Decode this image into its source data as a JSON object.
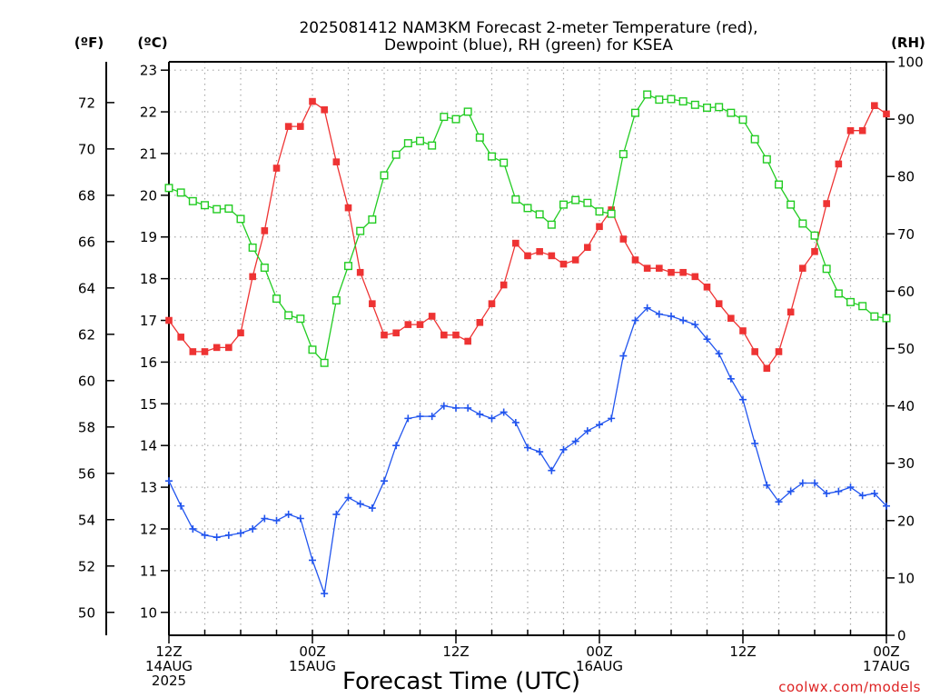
{
  "title_line1": "2025081412 NAM3KM Forecast 2-meter Temperature (red),",
  "title_line2": "Dewpoint (blue), RH (green) for KSEA",
  "credit": "coolwx.com/models",
  "chart_data": {
    "type": "line",
    "title": "2025081412 NAM3KM Forecast 2-meter Temperature (red), Dewpoint (blue), RH (green) for KSEA",
    "xlabel": "Forecast Time (UTC)",
    "ylabel_left_outer": "(ºF)",
    "ylabel_left": "(ºC)",
    "ylabel_right": "(RH)",
    "x_hours_start": 0,
    "x_hours_end": 60,
    "ylim_c": [
      9.45,
      23.2
    ],
    "ylim_rh": [
      0,
      100
    ],
    "grid": true,
    "x_ticks": [
      {
        "hour": 0,
        "lines": [
          "12Z",
          "14AUG",
          "2025"
        ]
      },
      {
        "hour": 12,
        "lines": [
          "00Z",
          "15AUG"
        ]
      },
      {
        "hour": 24,
        "lines": [
          "12Z"
        ]
      },
      {
        "hour": 36,
        "lines": [
          "00Z",
          "16AUG"
        ]
      },
      {
        "hour": 48,
        "lines": [
          "12Z"
        ]
      },
      {
        "hour": 60,
        "lines": [
          "00Z",
          "17AUG"
        ]
      }
    ],
    "c_ticks": [
      10,
      11,
      12,
      13,
      14,
      15,
      16,
      17,
      18,
      19,
      20,
      21,
      22,
      23
    ],
    "f_ticks": [
      50,
      52,
      54,
      56,
      58,
      60,
      62,
      64,
      66,
      68,
      70,
      72
    ],
    "rh_ticks": [
      0,
      10,
      20,
      30,
      40,
      50,
      60,
      70,
      80,
      90,
      100
    ],
    "series": [
      {
        "name": "Temperature",
        "units": "C",
        "color": "#ee3333",
        "marker": "filled-square",
        "values": [
          17.0,
          16.6,
          16.25,
          16.25,
          16.35,
          16.35,
          16.7,
          18.05,
          19.15,
          20.65,
          21.65,
          21.65,
          22.25,
          22.05,
          20.8,
          19.7,
          18.15,
          17.4,
          16.65,
          16.7,
          16.9,
          16.9,
          17.1,
          16.65,
          16.65,
          16.5,
          16.95,
          17.4,
          17.85,
          18.85,
          18.55,
          18.65,
          18.55,
          18.35,
          18.45,
          18.75,
          19.25,
          19.65,
          18.95,
          18.45,
          18.25,
          18.25,
          18.15,
          18.15,
          18.05,
          17.8,
          17.4,
          17.05,
          16.75,
          16.25,
          15.85,
          16.25,
          17.2,
          18.25,
          18.65,
          19.8,
          20.75,
          21.55,
          21.55,
          22.15,
          21.95
        ]
      },
      {
        "name": "Dewpoint",
        "units": "C",
        "color": "#2255ee",
        "marker": "plus",
        "values": [
          13.15,
          12.55,
          12.0,
          11.85,
          11.8,
          11.85,
          11.9,
          12.0,
          12.25,
          12.2,
          12.35,
          12.25,
          11.25,
          10.45,
          12.35,
          12.75,
          12.6,
          12.5,
          13.15,
          14.0,
          14.65,
          14.7,
          14.7,
          14.95,
          14.9,
          14.9,
          14.75,
          14.65,
          14.8,
          14.55,
          13.95,
          13.85,
          13.4,
          13.9,
          14.1,
          14.35,
          14.5,
          14.65,
          16.15,
          17.0,
          17.3,
          17.15,
          17.1,
          17.0,
          16.9,
          16.55,
          16.2,
          15.6,
          15.1,
          14.05,
          13.05,
          12.65,
          12.9,
          13.1,
          13.1,
          12.85,
          12.9,
          13.0,
          12.8,
          12.85,
          12.55
        ]
      },
      {
        "name": "RH",
        "units": "%",
        "color": "#22cc22",
        "marker": "open-square",
        "values": [
          78.0,
          77.2,
          75.7,
          75.0,
          74.3,
          74.4,
          72.6,
          67.6,
          64.1,
          58.7,
          55.8,
          55.2,
          49.8,
          47.5,
          58.4,
          64.4,
          70.5,
          72.5,
          80.2,
          83.8,
          85.8,
          86.2,
          85.4,
          90.4,
          90.0,
          91.3,
          86.8,
          83.5,
          82.4,
          76.0,
          74.5,
          73.4,
          71.6,
          75.1,
          75.9,
          75.4,
          73.9,
          73.5,
          83.9,
          91.1,
          94.3,
          93.4,
          93.5,
          93.1,
          92.5,
          92.0,
          92.1,
          91.1,
          89.9,
          86.5,
          83.0,
          78.6,
          75.1,
          71.8,
          69.7,
          63.9,
          59.6,
          58.1,
          57.4,
          55.6,
          55.3
        ]
      }
    ]
  }
}
